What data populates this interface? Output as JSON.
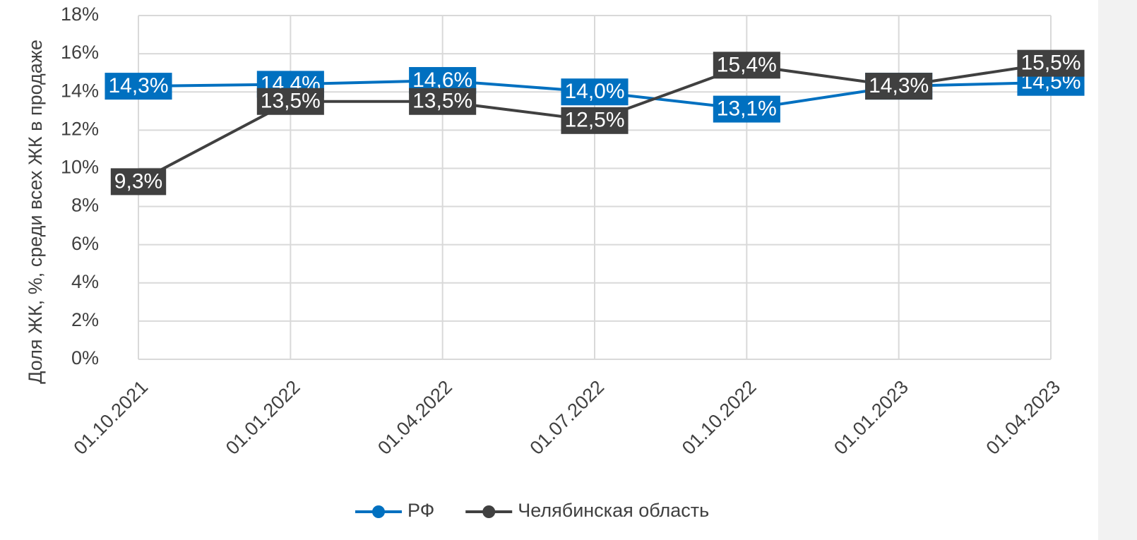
{
  "chart_data": {
    "type": "line",
    "y_axis_label": "Доля ЖК, %, среди всех ЖК в продаже",
    "categories": [
      "01.10.2021",
      "01.01.2022",
      "01.04.2022",
      "01.07.2022",
      "01.10.2022",
      "01.01.2023",
      "01.04.2023"
    ],
    "series": [
      {
        "name": "РФ",
        "color": "#0070c0",
        "values": [
          14.3,
          14.4,
          14.6,
          14.0,
          13.1,
          14.3,
          14.5
        ],
        "value_labels": [
          "14,3%",
          "14,4%",
          "14,6%",
          "14,0%",
          "13,1%",
          "14,3%",
          "14,5%"
        ]
      },
      {
        "name": "Челябинская область",
        "color": "#404040",
        "values": [
          9.3,
          13.5,
          13.5,
          12.5,
          15.4,
          14.3,
          15.5
        ],
        "value_labels": [
          "9,3%",
          "13,5%",
          "13,5%",
          "12,5%",
          "15,4%",
          "14,3%",
          "15,5%"
        ]
      }
    ],
    "ylim": [
      0,
      18
    ],
    "yticks": [
      {
        "value": 0,
        "label": "0%"
      },
      {
        "value": 2,
        "label": "2%"
      },
      {
        "value": 4,
        "label": "4%"
      },
      {
        "value": 6,
        "label": "6%"
      },
      {
        "value": 8,
        "label": "8%"
      },
      {
        "value": 10,
        "label": "10%"
      },
      {
        "value": 12,
        "label": "12%"
      },
      {
        "value": 14,
        "label": "14%"
      },
      {
        "value": 16,
        "label": "16%"
      },
      {
        "value": 18,
        "label": "18%"
      }
    ],
    "grid": true,
    "legend": "bottom"
  }
}
